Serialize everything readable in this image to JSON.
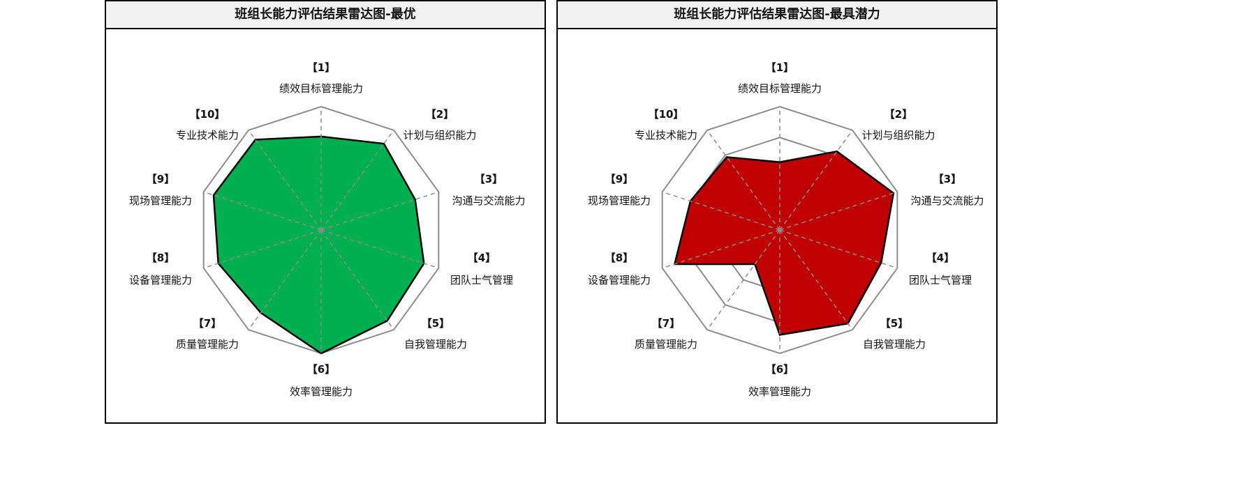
{
  "chart_data": [
    {
      "type": "radar",
      "title": "班组长能力评估结果雷达图-最优",
      "categories": [
        {
          "index": "【1】",
          "label": "绩效目标管理能力"
        },
        {
          "index": "【2】",
          "label": "计划与组织能力"
        },
        {
          "index": "【3】",
          "label": "沟通与交流能力"
        },
        {
          "index": "【4】",
          "label": "团队士气管理"
        },
        {
          "index": "【5】",
          "label": "自我管理能力"
        },
        {
          "index": "【6】",
          "label": "效率管理能力"
        },
        {
          "index": "【7】",
          "label": "质量管理能力"
        },
        {
          "index": "【8】",
          "label": "设备管理能力"
        },
        {
          "index": "【9】",
          "label": "现场管理能力"
        },
        {
          "index": "【10】",
          "label": "专业技术能力"
        }
      ],
      "values": [
        3.03,
        3.46,
        3.2,
        3.5,
        3.64,
        4.0,
        3.32,
        3.5,
        3.66,
        3.62
      ],
      "rlim": [
        0,
        4
      ],
      "grid_rings": [
        1,
        2,
        3,
        4
      ],
      "fill_color": "#00b050",
      "line_color": "#000000",
      "legend": "none"
    },
    {
      "type": "radar",
      "title": "班组长能力评估结果雷达图-最具潜力",
      "categories": [
        {
          "index": "【1】",
          "label": "绩效目标管理能力"
        },
        {
          "index": "【2】",
          "label": "计划与组织能力"
        },
        {
          "index": "【3】",
          "label": "沟通与交流能力"
        },
        {
          "index": "【4】",
          "label": "团队士气管理"
        },
        {
          "index": "【5】",
          "label": "自我管理能力"
        },
        {
          "index": "【6】",
          "label": "效率管理能力"
        },
        {
          "index": "【7】",
          "label": "质量管理能力"
        },
        {
          "index": "【8】",
          "label": "设备管理能力"
        },
        {
          "index": "【9】",
          "label": "现场管理能力"
        },
        {
          "index": "【10】",
          "label": "专业技术能力"
        }
      ],
      "values": [
        2.2,
        3.15,
        3.87,
        3.45,
        3.75,
        3.4,
        1.37,
        3.58,
        3.04,
        2.92
      ],
      "rlim": [
        0,
        4
      ],
      "grid_rings": [
        1,
        2,
        3,
        4
      ],
      "fill_color": "#c00000",
      "line_color": "#000000",
      "legend": "none"
    }
  ]
}
